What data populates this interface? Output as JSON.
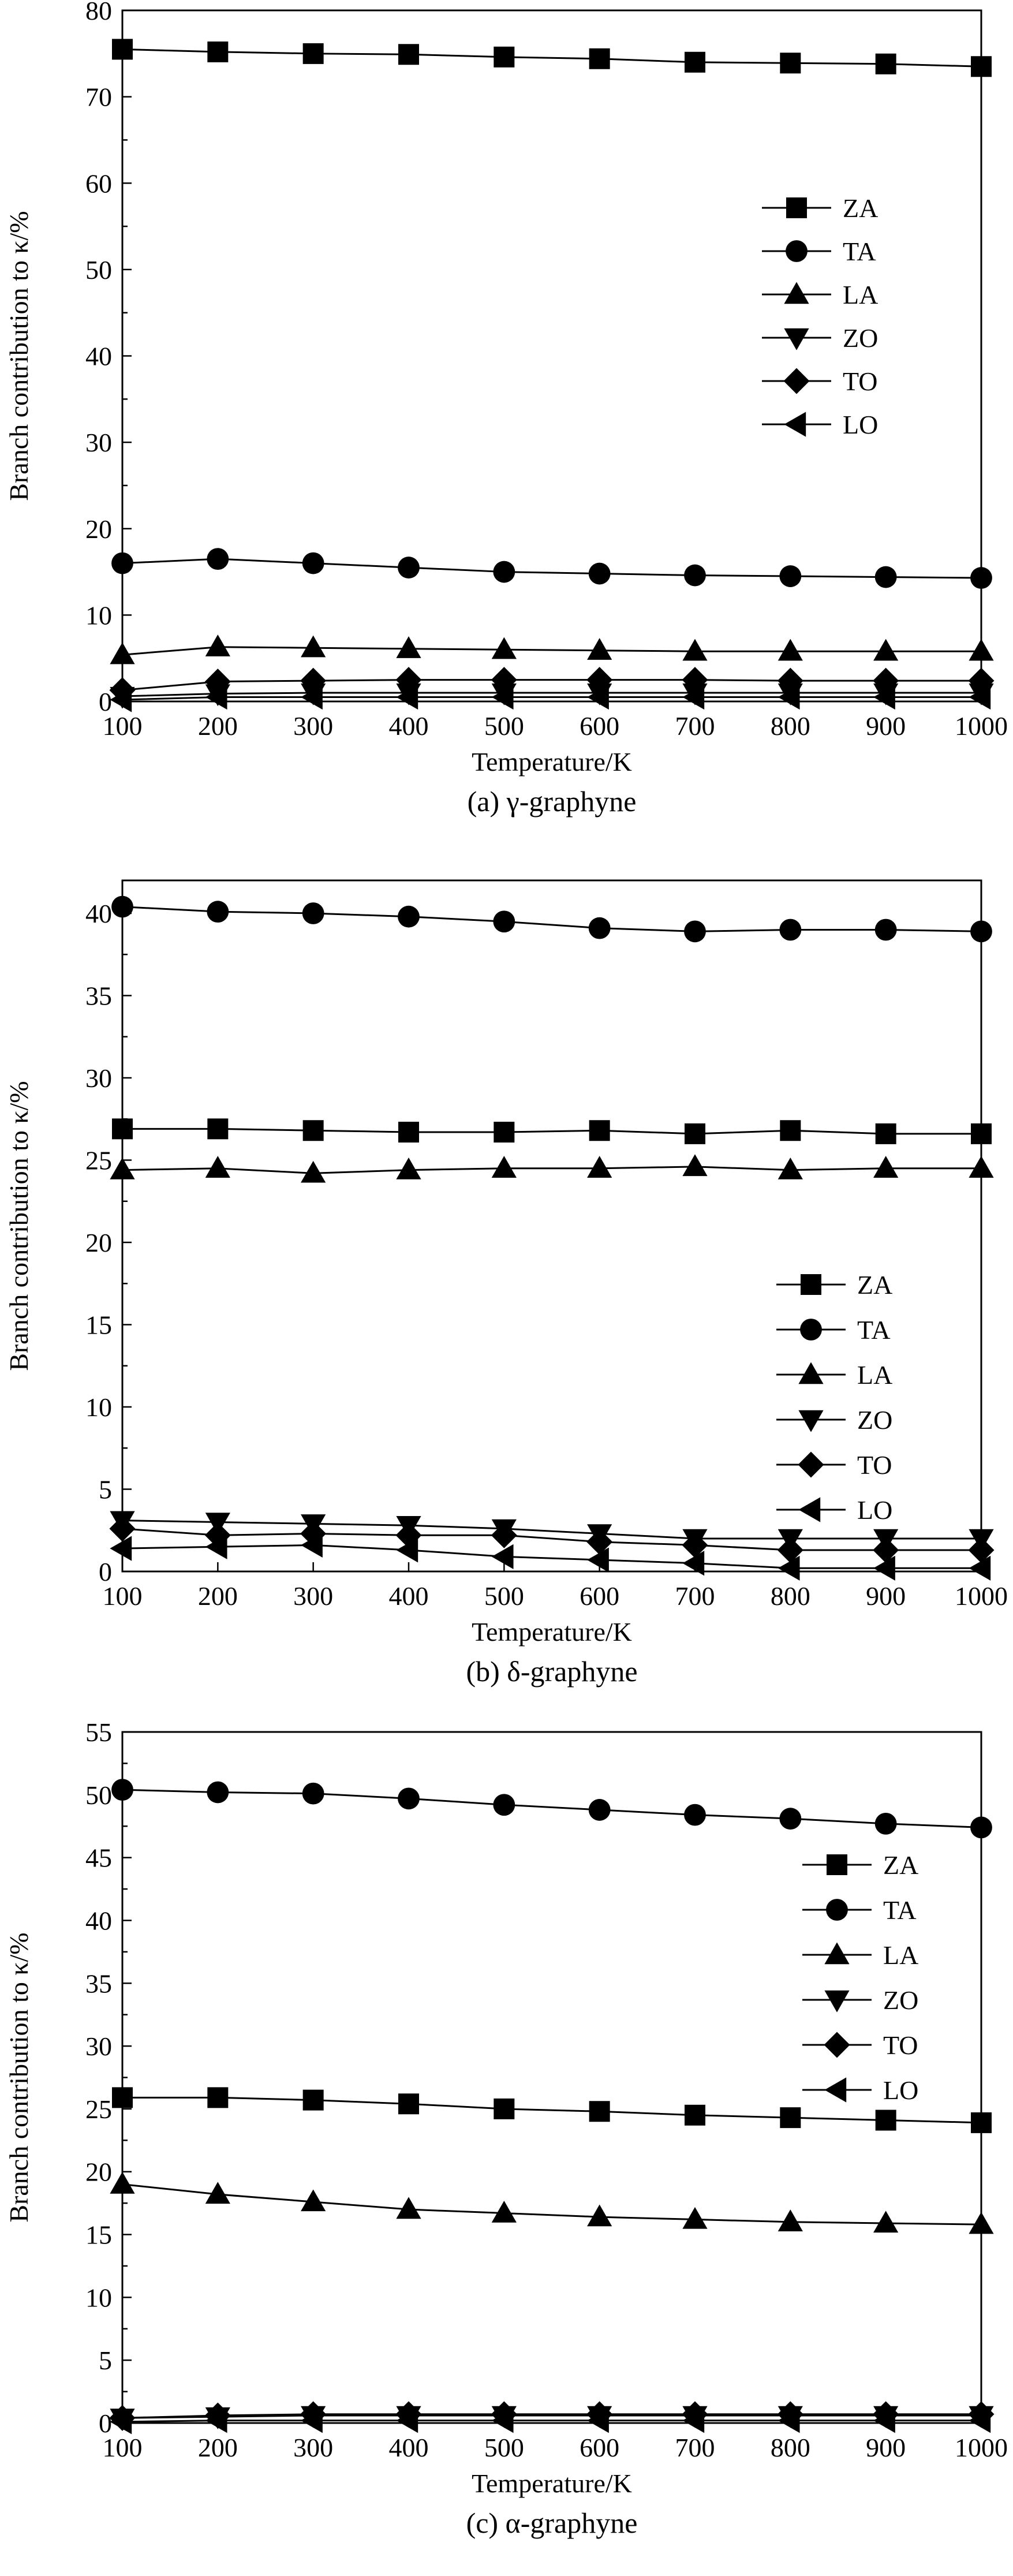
{
  "chart_data": [
    {
      "type": "line",
      "caption": "(a) γ-graphyne",
      "xlabel": "Temperature/K",
      "ylabel": "Branch contribution to κ/%",
      "x": [
        100,
        200,
        300,
        400,
        500,
        600,
        700,
        800,
        900,
        1000
      ],
      "xlim": [
        100,
        1000
      ],
      "xticks": [
        100,
        200,
        300,
        400,
        500,
        600,
        700,
        800,
        900,
        1000
      ],
      "ylim": [
        0,
        80
      ],
      "yticks": [
        0,
        10,
        20,
        30,
        40,
        50,
        60,
        70,
        80
      ],
      "yminor": 5,
      "legend_position": "right-middle",
      "series": [
        {
          "name": "ZA",
          "marker": "square",
          "values": [
            75.5,
            75.2,
            75.0,
            74.9,
            74.6,
            74.4,
            74.0,
            73.9,
            73.8,
            73.5
          ]
        },
        {
          "name": "TA",
          "marker": "circle",
          "values": [
            16.0,
            16.5,
            16.0,
            15.5,
            15.0,
            14.8,
            14.6,
            14.5,
            14.4,
            14.3
          ]
        },
        {
          "name": "LA",
          "marker": "triangle-up",
          "values": [
            5.4,
            6.3,
            6.2,
            6.1,
            6.0,
            5.9,
            5.8,
            5.8,
            5.8,
            5.8
          ]
        },
        {
          "name": "ZO",
          "marker": "triangle-down",
          "values": [
            0.6,
            0.9,
            1.0,
            1.0,
            1.0,
            1.0,
            1.0,
            1.0,
            1.0,
            1.0
          ]
        },
        {
          "name": "TO",
          "marker": "diamond",
          "values": [
            1.3,
            2.3,
            2.4,
            2.5,
            2.5,
            2.5,
            2.5,
            2.4,
            2.4,
            2.4
          ]
        },
        {
          "name": "LO",
          "marker": "triangle-left",
          "values": [
            0.2,
            0.5,
            0.5,
            0.5,
            0.5,
            0.5,
            0.5,
            0.5,
            0.5,
            0.5
          ]
        }
      ]
    },
    {
      "type": "line",
      "caption": "(b) δ-graphyne",
      "xlabel": "Temperature/K",
      "ylabel": "Branch contribution to κ/%",
      "x": [
        100,
        200,
        300,
        400,
        500,
        600,
        700,
        800,
        900,
        1000
      ],
      "xlim": [
        100,
        1000
      ],
      "xticks": [
        100,
        200,
        300,
        400,
        500,
        600,
        700,
        800,
        900,
        1000
      ],
      "ylim": [
        0,
        42
      ],
      "yticks": [
        0,
        5,
        10,
        15,
        20,
        25,
        30,
        35,
        40
      ],
      "yminor": 2.5,
      "legend_position": "right-middle",
      "series": [
        {
          "name": "ZA",
          "marker": "square",
          "values": [
            26.9,
            26.9,
            26.8,
            26.7,
            26.7,
            26.8,
            26.6,
            26.8,
            26.6,
            26.6
          ]
        },
        {
          "name": "TA",
          "marker": "circle",
          "values": [
            40.4,
            40.1,
            40.0,
            39.8,
            39.5,
            39.1,
            38.9,
            39.0,
            39.0,
            38.9
          ]
        },
        {
          "name": "LA",
          "marker": "triangle-up",
          "values": [
            24.4,
            24.5,
            24.2,
            24.4,
            24.5,
            24.5,
            24.6,
            24.4,
            24.5,
            24.5
          ]
        },
        {
          "name": "ZO",
          "marker": "triangle-down",
          "values": [
            3.1,
            3.0,
            2.9,
            2.8,
            2.6,
            2.3,
            2.0,
            2.0,
            2.0,
            2.0
          ]
        },
        {
          "name": "TO",
          "marker": "diamond",
          "values": [
            2.6,
            2.2,
            2.3,
            2.2,
            2.2,
            1.8,
            1.6,
            1.3,
            1.3,
            1.3
          ]
        },
        {
          "name": "LO",
          "marker": "triangle-left",
          "values": [
            1.4,
            1.5,
            1.6,
            1.3,
            0.9,
            0.7,
            0.5,
            0.2,
            0.2,
            0.2
          ]
        }
      ]
    },
    {
      "type": "line",
      "caption": "(c) α-graphyne",
      "xlabel": "Temperature/K",
      "ylabel": "Branch contribution to κ/%",
      "x": [
        100,
        200,
        300,
        400,
        500,
        600,
        700,
        800,
        900,
        1000
      ],
      "xlim": [
        100,
        1000
      ],
      "xticks": [
        100,
        200,
        300,
        400,
        500,
        600,
        700,
        800,
        900,
        1000
      ],
      "ylim": [
        0,
        55
      ],
      "yticks": [
        0,
        5,
        10,
        15,
        20,
        25,
        30,
        35,
        40,
        45,
        50,
        55
      ],
      "yminor": 2.5,
      "legend_position": "right-middle",
      "series": [
        {
          "name": "ZA",
          "marker": "square",
          "values": [
            25.9,
            25.9,
            25.7,
            25.4,
            25.0,
            24.8,
            24.5,
            24.3,
            24.1,
            23.9
          ]
        },
        {
          "name": "TA",
          "marker": "circle",
          "values": [
            50.4,
            50.2,
            50.1,
            49.7,
            49.2,
            48.8,
            48.4,
            48.1,
            47.7,
            47.4
          ]
        },
        {
          "name": "LA",
          "marker": "triangle-up",
          "values": [
            19.0,
            18.2,
            17.6,
            17.0,
            16.7,
            16.4,
            16.2,
            16.0,
            15.9,
            15.8
          ]
        },
        {
          "name": "ZO",
          "marker": "triangle-down",
          "values": [
            0.4,
            0.5,
            0.6,
            0.6,
            0.6,
            0.6,
            0.6,
            0.6,
            0.6,
            0.6
          ]
        },
        {
          "name": "TO",
          "marker": "diamond",
          "values": [
            0.4,
            0.6,
            0.7,
            0.7,
            0.7,
            0.7,
            0.7,
            0.7,
            0.7,
            0.7
          ]
        },
        {
          "name": "LO",
          "marker": "triangle-left",
          "values": [
            0.1,
            0.2,
            0.2,
            0.2,
            0.2,
            0.2,
            0.2,
            0.2,
            0.2,
            0.2
          ]
        }
      ]
    }
  ]
}
